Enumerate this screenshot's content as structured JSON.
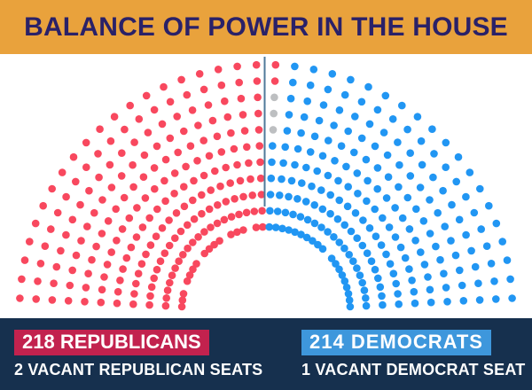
{
  "header": {
    "title": "BALANCE OF POWER IN THE HOUSE",
    "background_color": "#E9A23C",
    "text_color": "#2A2168"
  },
  "chart_data": {
    "type": "parliament",
    "layout": "hemicycle",
    "title": "Balance of Power in the House",
    "total_seats": 435,
    "majority_threshold": 218,
    "series": [
      {
        "name": "Republicans",
        "seats": 218,
        "color": "#F8485E"
      },
      {
        "name": "Vacant Republican seats",
        "seats": 2,
        "color": "#BDBFC1"
      },
      {
        "name": "Vacant Democrat seat",
        "seats": 1,
        "color": "#BDBFC1"
      },
      {
        "name": "Democrats",
        "seats": 214,
        "color": "#2196F3"
      }
    ],
    "majority_divider_color": "#4F7A99"
  },
  "footer": {
    "background_color": "#16304E",
    "text_color": "#FFFFFF",
    "republicans": {
      "count_label": "218 REPUBLICANS",
      "chip_color": "#C2224E",
      "vacant_label": "2 VACANT REPUBLICAN SEATS"
    },
    "democrats": {
      "count_label": "214 DEMOCRATS",
      "chip_color": "#3E97DC",
      "vacant_label": "1 VACANT DEMOCRAT SEAT"
    }
  }
}
